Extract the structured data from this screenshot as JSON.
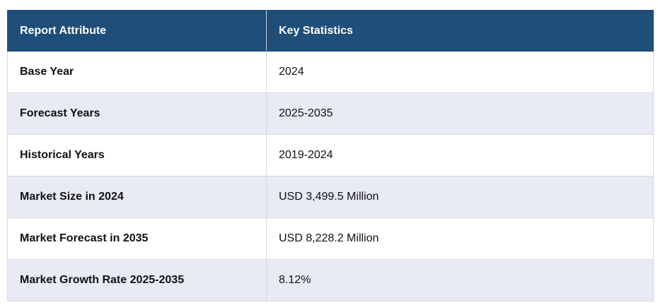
{
  "table": {
    "header": [
      "Report Attribute",
      "Key Statistics"
    ],
    "rows": [
      [
        "Base Year",
        "2024"
      ],
      [
        "Forecast Years",
        "2025-2035"
      ],
      [
        "Historical Years",
        "2019-2024"
      ],
      [
        "Market Size in 2024",
        "USD 3,499.5 Million"
      ],
      [
        "Market Forecast in 2035",
        "USD 8,228.2 Million"
      ],
      [
        "Market Growth Rate 2025-2035",
        "8.12%"
      ]
    ]
  }
}
